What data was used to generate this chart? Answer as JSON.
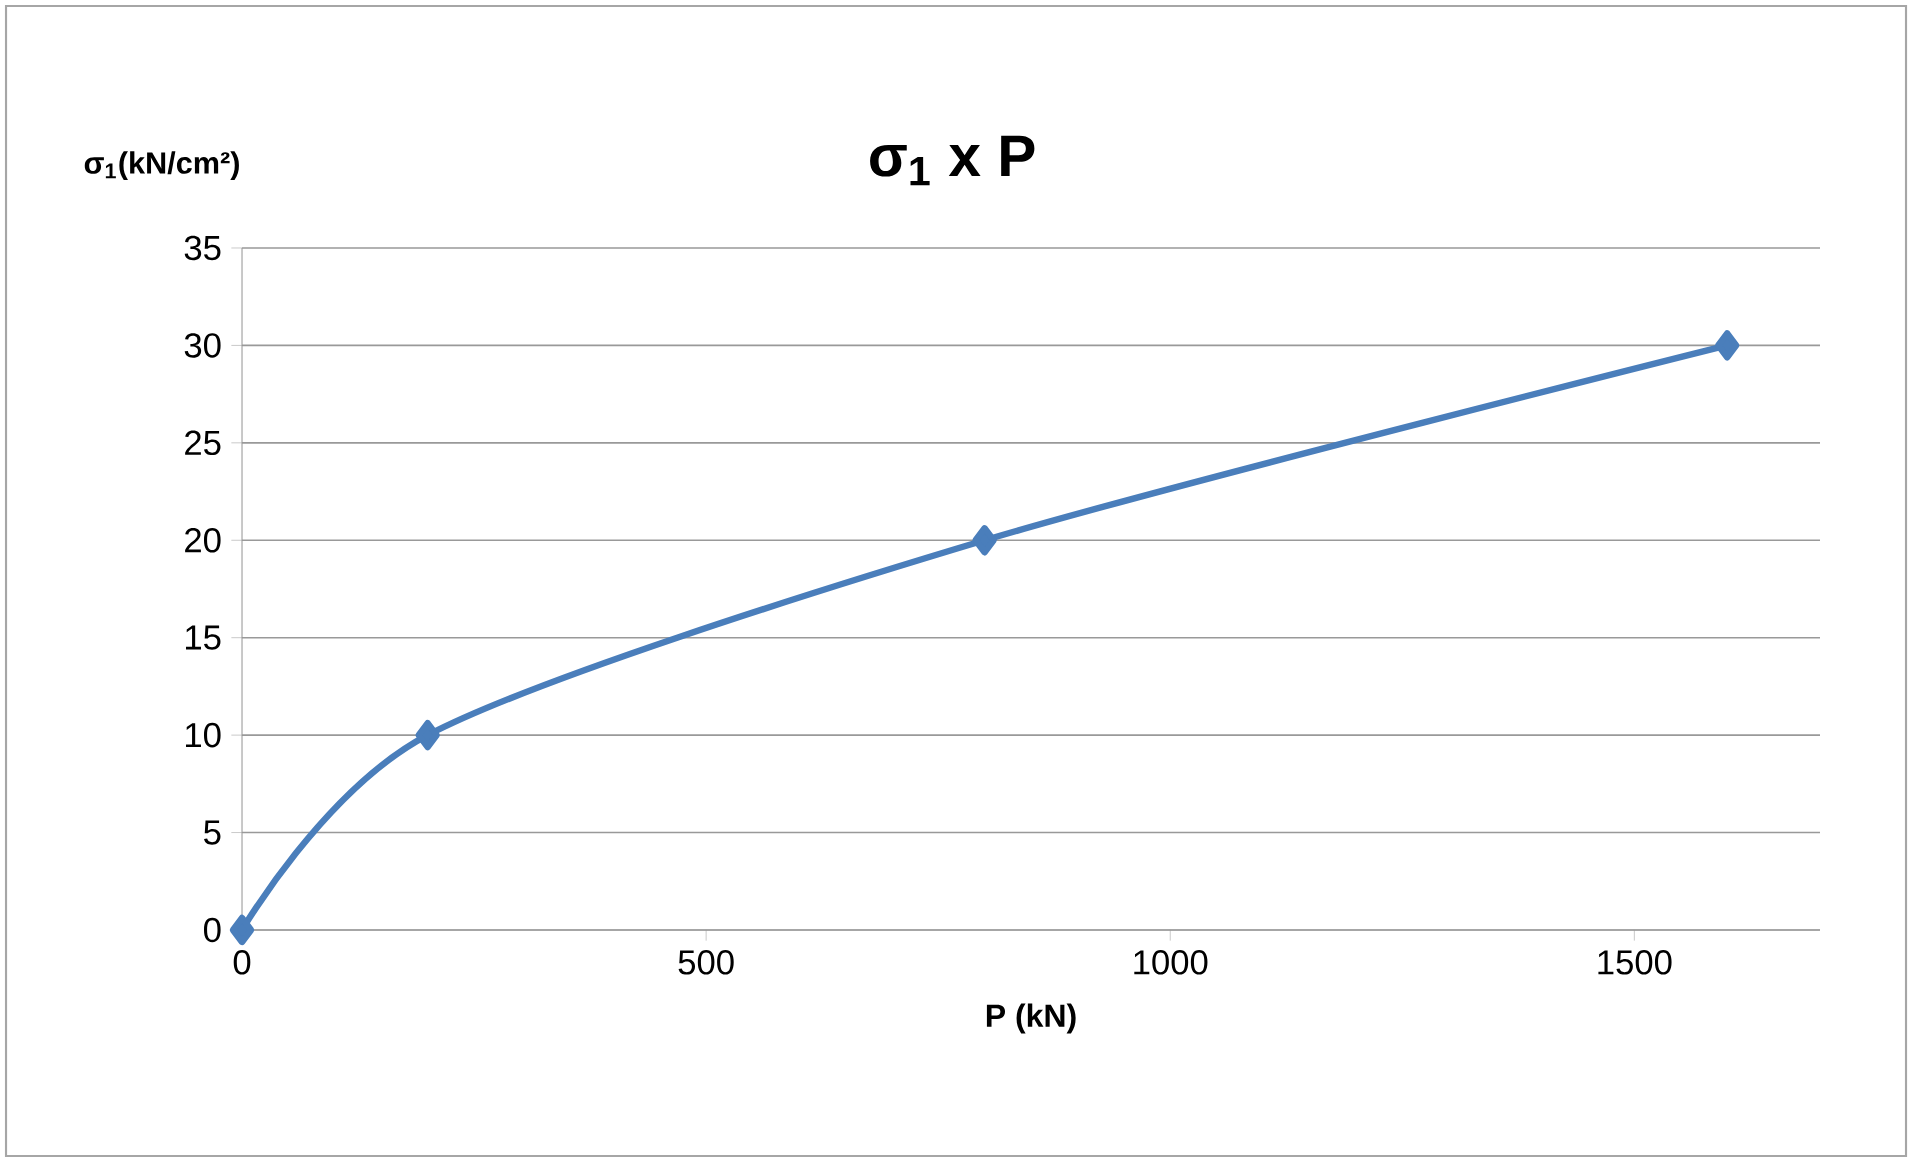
{
  "chart_data": {
    "type": "line",
    "title": "σ$_{1}$ x P",
    "xlabel": "P (kN)",
    "ylabel": "σ$_{1}$(kN/cm²)",
    "x": [
      0,
      200,
      800,
      1600
    ],
    "series": [
      {
        "color": "#4a7ebb",
        "values": [
          0,
          10,
          20,
          30
        ]
      }
    ],
    "xlim": [
      0,
      1700
    ],
    "xticks": [
      0,
      500,
      1000,
      1500
    ],
    "ylim": [
      0,
      35
    ],
    "yticks": [
      0,
      5,
      10,
      15,
      20,
      25,
      30,
      35
    ],
    "grid": "y",
    "marker": "diamond",
    "line_style": "solid"
  }
}
